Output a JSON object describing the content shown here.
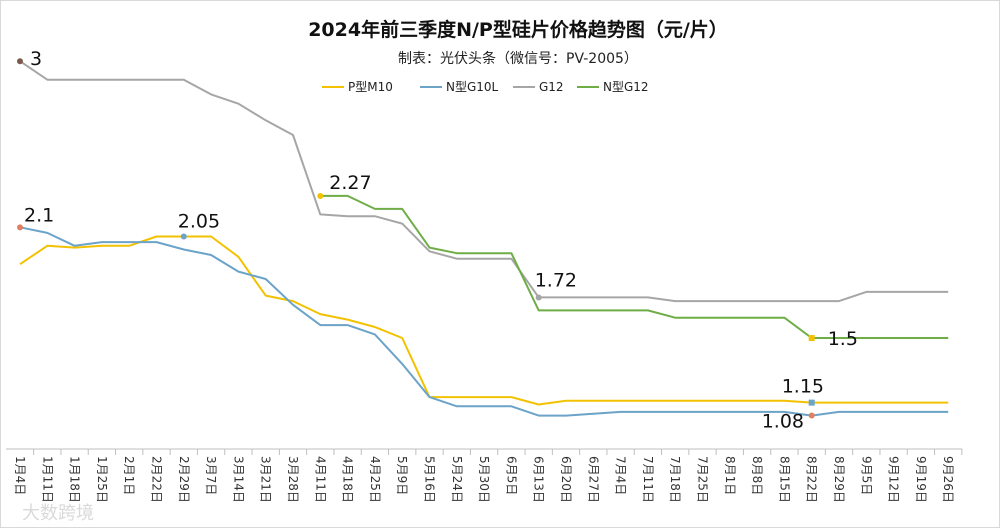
{
  "chart_data": {
    "type": "line",
    "title": "2024年前三季度N/P型硅片价格趋势图（元/片）",
    "subtitle": "制表：光伏头条（微信号：PV-2005）",
    "watermark": "大数跨境",
    "legend_position": "top",
    "grid": false,
    "ylim": [
      0.85,
      3.05
    ],
    "x": [
      "1月4日",
      "1月11日",
      "1月18日",
      "1月25日",
      "2月1日",
      "2月22日",
      "2月29日",
      "3月7日",
      "3月14日",
      "3月21日",
      "3月28日",
      "4月11日",
      "4月18日",
      "4月25日",
      "5月9日",
      "5月16日",
      "5月24日",
      "5月30日",
      "6月5日",
      "6月13日",
      "6月20日",
      "6月27日",
      "7月4日",
      "7月11日",
      "7月18日",
      "7月25日",
      "8月1日",
      "8月8日",
      "8月15日",
      "8月22日",
      "8月29日",
      "9月5日",
      "9月12日",
      "9月19日",
      "9月26日"
    ],
    "series": [
      {
        "name": "P型M10",
        "color": "#F2C200",
        "values": [
          1.9,
          2.0,
          1.99,
          2.0,
          2.0,
          2.05,
          2.05,
          2.05,
          1.94,
          1.73,
          1.7,
          1.63,
          1.6,
          1.56,
          1.5,
          1.18,
          1.18,
          1.18,
          1.18,
          1.14,
          1.16,
          1.16,
          1.16,
          1.16,
          1.16,
          1.16,
          1.16,
          1.16,
          1.16,
          1.15,
          1.15,
          1.15,
          1.15,
          1.15,
          1.15
        ]
      },
      {
        "name": "N型G10L",
        "color": "#6BA3C9",
        "values": [
          2.1,
          2.07,
          2.0,
          2.02,
          2.02,
          2.02,
          1.98,
          1.95,
          1.86,
          1.82,
          1.68,
          1.57,
          1.57,
          1.52,
          1.36,
          1.18,
          1.13,
          1.13,
          1.13,
          1.08,
          1.08,
          1.09,
          1.1,
          1.1,
          1.1,
          1.1,
          1.1,
          1.1,
          1.1,
          1.08,
          1.1,
          1.1,
          1.1,
          1.1,
          1.1
        ]
      },
      {
        "name": "G12",
        "color": "#A6A6A6",
        "values": [
          3.0,
          2.9,
          2.9,
          2.9,
          2.9,
          2.9,
          2.9,
          2.82,
          2.77,
          2.68,
          2.6,
          2.17,
          2.16,
          2.16,
          2.12,
          1.97,
          1.93,
          1.93,
          1.93,
          1.72,
          1.72,
          1.72,
          1.72,
          1.72,
          1.7,
          1.7,
          1.7,
          1.7,
          1.7,
          1.7,
          1.7,
          1.75,
          1.75,
          1.75,
          1.75
        ]
      },
      {
        "name": "N型G12",
        "color": "#6FAD47",
        "values": [
          null,
          null,
          null,
          null,
          null,
          null,
          null,
          null,
          null,
          null,
          null,
          2.27,
          2.27,
          2.2,
          2.2,
          1.99,
          1.96,
          1.96,
          1.96,
          1.65,
          1.65,
          1.65,
          1.65,
          1.65,
          1.61,
          1.61,
          1.61,
          1.61,
          1.61,
          1.5,
          1.5,
          1.5,
          1.5,
          1.5,
          1.5
        ]
      }
    ],
    "annotations": [
      {
        "series": 2,
        "index": 0,
        "text": "3",
        "color": "#7B5A4A"
      },
      {
        "series": 1,
        "index": 0,
        "text": "2.1",
        "color": "#E08060"
      },
      {
        "series": 0,
        "index": 6,
        "text": "2.05",
        "color": "#6BA3C9"
      },
      {
        "series": 3,
        "index": 11,
        "text": "2.27",
        "color": "#F2C200"
      },
      {
        "series": 2,
        "index": 19,
        "text": "1.72",
        "color": "#A6A6A6"
      },
      {
        "series": 3,
        "index": 29,
        "text": "1.5",
        "color": "#F2C200"
      },
      {
        "series": 0,
        "index": 29,
        "text": "1.15",
        "color": "#6BA3C9"
      },
      {
        "series": 1,
        "index": 29,
        "text": "1.08",
        "color": "#E08060"
      }
    ]
  }
}
